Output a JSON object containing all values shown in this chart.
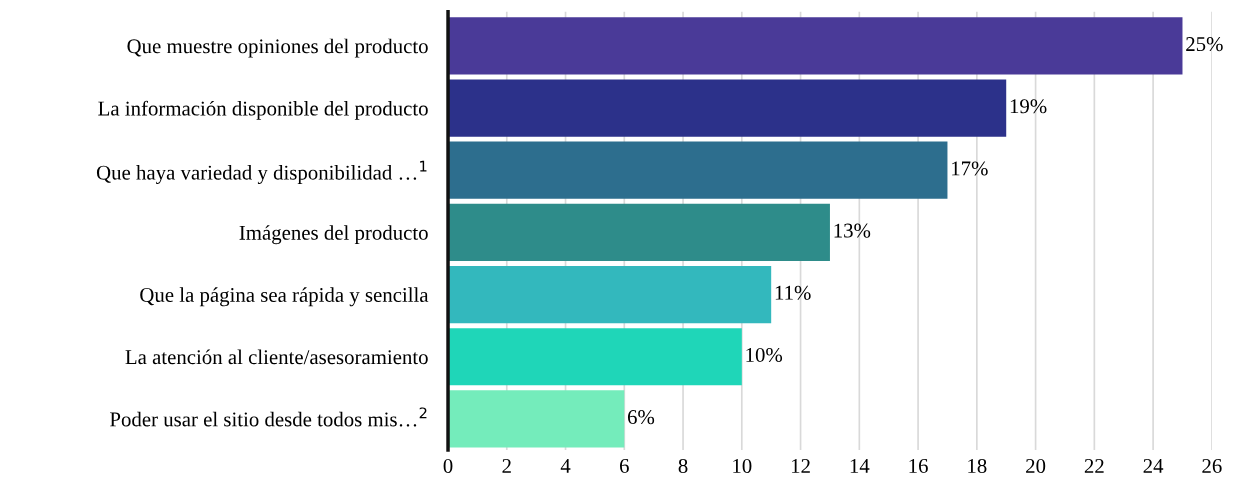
{
  "chart_data": {
    "type": "bar",
    "orientation": "horizontal",
    "categories": [
      "Que muestre opiniones del producto",
      "La información disponible del producto",
      "Que haya variedad y disponibilidad …$^{1}$",
      "Imágenes del producto",
      "Que la página sea rápida y sencilla",
      "La atención al cliente/asesoramiento",
      "Poder usar el sitio desde todos mis…$^{2}$"
    ],
    "values": [
      25,
      19,
      17,
      13,
      11,
      10,
      6
    ],
    "value_labels": [
      "25%",
      "19%",
      "17%",
      "13%",
      "11%",
      "10%",
      "6%"
    ],
    "colors": [
      "#4a3a98",
      "#2c318a",
      "#2d6e8e",
      "#2e8c8a",
      "#33b8bd",
      "#1fd6b8",
      "#74ecbb"
    ],
    "xlim": [
      0,
      26
    ],
    "xticks": [
      0,
      2,
      4,
      6,
      8,
      10,
      12,
      14,
      16,
      18,
      20,
      22,
      24,
      26
    ],
    "grid": "x"
  }
}
